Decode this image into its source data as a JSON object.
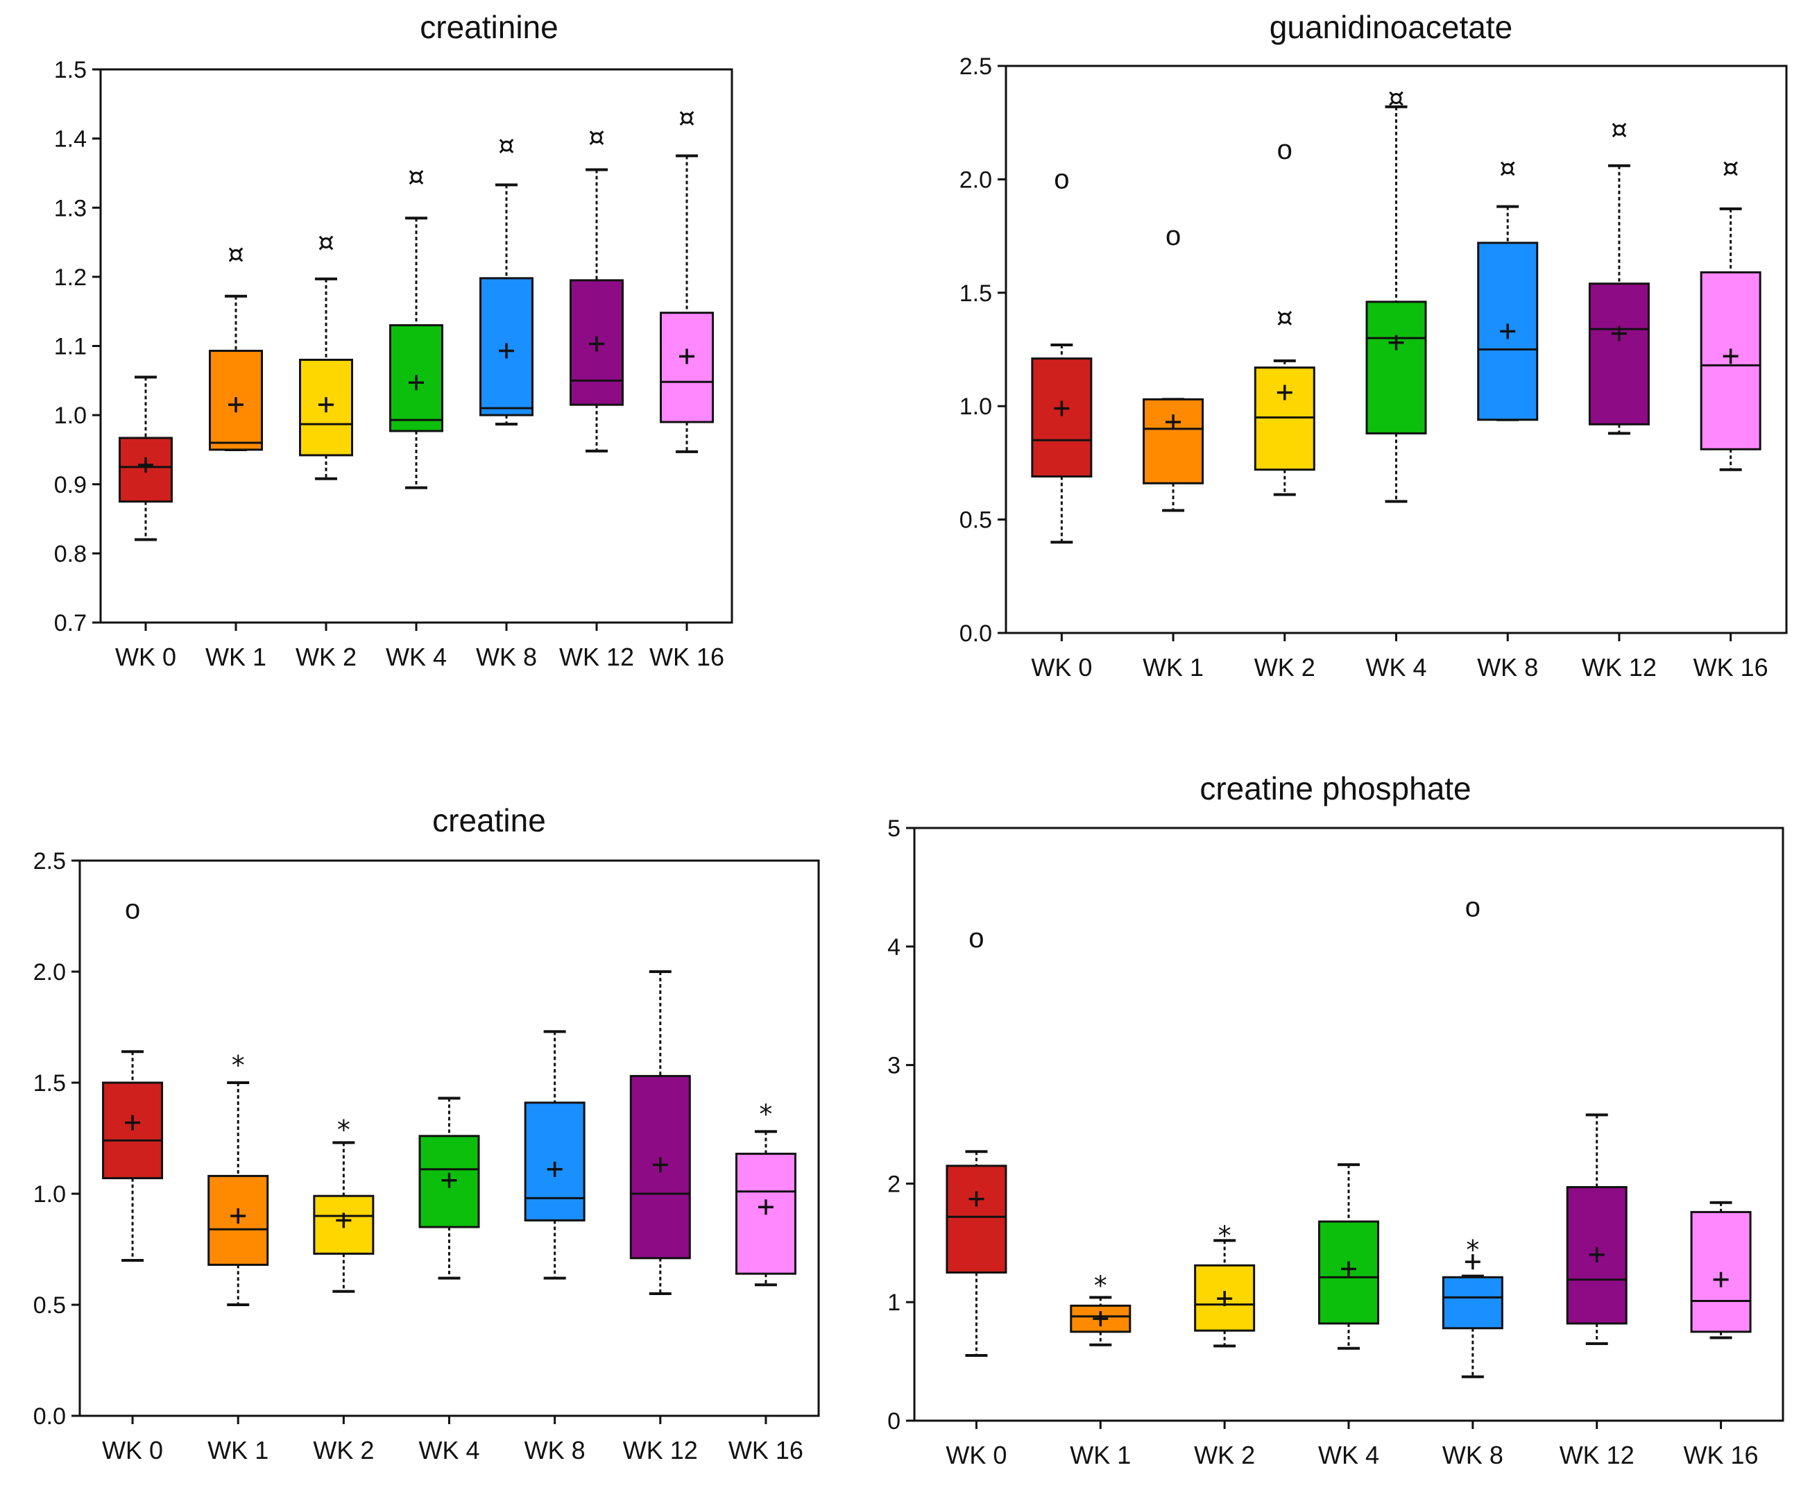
{
  "colors": [
    "#d0201e",
    "#ff8a00",
    "#ffd700",
    "#0cbf0c",
    "#1a8fff",
    "#8e0b86",
    "#ff88ff"
  ],
  "chart_data": [
    {
      "type": "boxplot",
      "title": "creatinine",
      "categories": [
        "WK 0",
        "WK 1",
        "WK 2",
        "WK 4",
        "WK 8",
        "WK 12",
        "WK 16"
      ],
      "ylim": [
        0.7,
        1.5
      ],
      "yticks": [
        0.7,
        0.8,
        0.9,
        1.0,
        1.1,
        1.2,
        1.3,
        1.4,
        1.5
      ],
      "ytick_labels": [
        "0.7",
        "0.8",
        "0.9",
        "1.0",
        "1.1",
        "1.2",
        "1.3",
        "1.4",
        "1.5"
      ],
      "boxes": [
        {
          "min": 0.82,
          "q1": 0.875,
          "median": 0.925,
          "q3": 0.967,
          "max": 1.055,
          "mean": 0.928,
          "marks": []
        },
        {
          "min": 0.95,
          "q1": 0.95,
          "median": 0.96,
          "q3": 1.093,
          "max": 1.172,
          "mean": 1.015,
          "marks": [
            {
              "symbol": "¤",
              "y": 1.233
            }
          ]
        },
        {
          "min": 0.908,
          "q1": 0.942,
          "median": 0.987,
          "q3": 1.08,
          "max": 1.197,
          "mean": 1.015,
          "marks": [
            {
              "symbol": "¤",
              "y": 1.25
            }
          ]
        },
        {
          "min": 0.895,
          "q1": 0.977,
          "median": 0.993,
          "q3": 1.13,
          "max": 1.285,
          "mean": 1.047,
          "marks": [
            {
              "symbol": "¤",
              "y": 1.345
            }
          ]
        },
        {
          "min": 0.987,
          "q1": 1.0,
          "median": 1.01,
          "q3": 1.198,
          "max": 1.333,
          "mean": 1.093,
          "marks": [
            {
              "symbol": "¤",
              "y": 1.39
            }
          ]
        },
        {
          "min": 0.948,
          "q1": 1.015,
          "median": 1.05,
          "q3": 1.195,
          "max": 1.355,
          "mean": 1.103,
          "marks": [
            {
              "symbol": "¤",
              "y": 1.402
            }
          ]
        },
        {
          "min": 0.947,
          "q1": 0.99,
          "median": 1.048,
          "q3": 1.148,
          "max": 1.375,
          "mean": 1.085,
          "marks": [
            {
              "symbol": "¤",
              "y": 1.43
            }
          ]
        }
      ]
    },
    {
      "type": "boxplot",
      "title": "guanidinoacetate",
      "categories": [
        "WK 0",
        "WK 1",
        "WK 2",
        "WK 4",
        "WK 8",
        "WK 12",
        "WK 16"
      ],
      "ylim": [
        0.0,
        2.5
      ],
      "yticks": [
        0.0,
        0.5,
        1.0,
        1.5,
        2.0,
        2.5
      ],
      "ytick_labels": [
        "0.0",
        "0.5",
        "1.0",
        "1.5",
        "2.0",
        "2.5"
      ],
      "boxes": [
        {
          "min": 0.4,
          "q1": 0.69,
          "median": 0.85,
          "q3": 1.21,
          "max": 1.27,
          "mean": 0.99,
          "marks": [
            {
              "symbol": "o",
              "y": 2.0
            }
          ]
        },
        {
          "min": 0.54,
          "q1": 0.66,
          "median": 0.9,
          "q3": 1.03,
          "max": 1.03,
          "mean": 0.93,
          "marks": [
            {
              "symbol": "o",
              "y": 1.75
            }
          ]
        },
        {
          "min": 0.61,
          "q1": 0.72,
          "median": 0.95,
          "q3": 1.17,
          "max": 1.2,
          "mean": 1.06,
          "marks": [
            {
              "symbol": "¤",
              "y": 1.39
            },
            {
              "symbol": "o",
              "y": 2.13
            }
          ]
        },
        {
          "min": 0.58,
          "q1": 0.88,
          "median": 1.3,
          "q3": 1.46,
          "max": 2.32,
          "mean": 1.28,
          "marks": [
            {
              "symbol": "¤",
              "y": 2.36
            }
          ]
        },
        {
          "min": 0.94,
          "q1": 0.94,
          "median": 1.25,
          "q3": 1.72,
          "max": 1.88,
          "mean": 1.33,
          "marks": [
            {
              "symbol": "¤",
              "y": 2.05
            }
          ]
        },
        {
          "min": 0.88,
          "q1": 0.92,
          "median": 1.34,
          "q3": 1.54,
          "max": 2.06,
          "mean": 1.32,
          "marks": [
            {
              "symbol": "¤",
              "y": 2.22
            }
          ]
        },
        {
          "min": 0.72,
          "q1": 0.81,
          "median": 1.18,
          "q3": 1.59,
          "max": 1.87,
          "mean": 1.22,
          "marks": [
            {
              "symbol": "¤",
              "y": 2.05
            }
          ]
        }
      ]
    },
    {
      "type": "boxplot",
      "title": "creatine",
      "categories": [
        "WK 0",
        "WK 1",
        "WK 2",
        "WK 4",
        "WK 8",
        "WK 12",
        "WK 16"
      ],
      "ylim": [
        0.0,
        2.5
      ],
      "yticks": [
        0.0,
        0.5,
        1.0,
        1.5,
        2.0,
        2.5
      ],
      "ytick_labels": [
        "0.0",
        "0.5",
        "1.0",
        "1.5",
        "2.0",
        "2.5"
      ],
      "boxes": [
        {
          "min": 0.7,
          "q1": 1.07,
          "median": 1.24,
          "q3": 1.5,
          "max": 1.64,
          "mean": 1.32,
          "marks": [
            {
              "symbol": "o",
              "y": 2.28
            }
          ]
        },
        {
          "min": 0.5,
          "q1": 0.68,
          "median": 0.84,
          "q3": 1.08,
          "max": 1.5,
          "mean": 0.9,
          "marks": [
            {
              "symbol": "*",
              "y": 1.6
            }
          ]
        },
        {
          "min": 0.56,
          "q1": 0.73,
          "median": 0.9,
          "q3": 0.99,
          "max": 1.23,
          "mean": 0.88,
          "marks": [
            {
              "symbol": "*",
              "y": 1.31
            }
          ]
        },
        {
          "min": 0.62,
          "q1": 0.85,
          "median": 1.11,
          "q3": 1.26,
          "max": 1.43,
          "mean": 1.06,
          "marks": []
        },
        {
          "min": 0.62,
          "q1": 0.88,
          "median": 0.98,
          "q3": 1.41,
          "max": 1.73,
          "mean": 1.11,
          "marks": []
        },
        {
          "min": 0.55,
          "q1": 0.71,
          "median": 1.0,
          "q3": 1.53,
          "max": 2.0,
          "mean": 1.13,
          "marks": []
        },
        {
          "min": 0.59,
          "q1": 0.64,
          "median": 1.01,
          "q3": 1.18,
          "max": 1.28,
          "mean": 0.94,
          "marks": [
            {
              "symbol": "*",
              "y": 1.38
            }
          ]
        }
      ]
    },
    {
      "type": "boxplot",
      "title": "creatine phosphate",
      "categories": [
        "WK 0",
        "WK 1",
        "WK 2",
        "WK 4",
        "WK 8",
        "WK 12",
        "WK 16"
      ],
      "ylim": [
        0,
        5
      ],
      "yticks": [
        0,
        1,
        2,
        3,
        4,
        5
      ],
      "ytick_labels": [
        "0",
        "1",
        "2",
        "3",
        "4",
        "5"
      ],
      "boxes": [
        {
          "min": 0.55,
          "q1": 1.25,
          "median": 1.72,
          "q3": 2.15,
          "max": 2.27,
          "mean": 1.87,
          "marks": [
            {
              "symbol": "o",
              "y": 4.07
            }
          ]
        },
        {
          "min": 0.64,
          "q1": 0.75,
          "median": 0.88,
          "q3": 0.97,
          "max": 1.04,
          "mean": 0.86,
          "marks": [
            {
              "symbol": "*",
              "y": 1.18
            }
          ]
        },
        {
          "min": 0.63,
          "q1": 0.76,
          "median": 0.98,
          "q3": 1.31,
          "max": 1.52,
          "mean": 1.03,
          "marks": [
            {
              "symbol": "*",
              "y": 1.6
            }
          ]
        },
        {
          "min": 0.61,
          "q1": 0.82,
          "median": 1.21,
          "q3": 1.68,
          "max": 2.16,
          "mean": 1.28,
          "marks": []
        },
        {
          "min": 0.37,
          "q1": 0.78,
          "median": 1.04,
          "q3": 1.21,
          "max": 1.22,
          "mean": 1.34,
          "marks": [
            {
              "symbol": "*",
              "y": 1.48
            },
            {
              "symbol": "o",
              "y": 4.33
            }
          ]
        },
        {
          "min": 0.65,
          "q1": 0.82,
          "median": 1.19,
          "q3": 1.97,
          "max": 2.58,
          "mean": 1.4,
          "marks": []
        },
        {
          "min": 0.7,
          "q1": 0.75,
          "median": 1.01,
          "q3": 1.76,
          "max": 1.84,
          "mean": 1.19,
          "marks": []
        }
      ]
    }
  ]
}
